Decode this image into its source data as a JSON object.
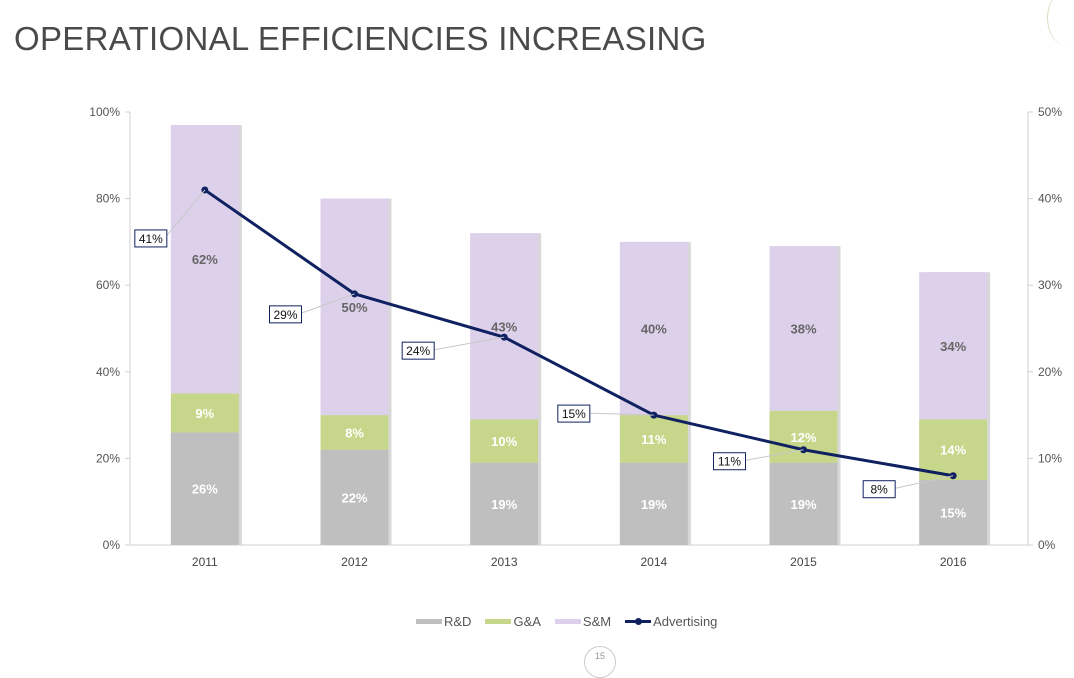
{
  "title": "OPERATIONAL EFFICIENCIES INCREASING",
  "page_number": "15",
  "chart_data": {
    "type": "bar",
    "stacked": true,
    "categories": [
      "2011",
      "2012",
      "2013",
      "2014",
      "2015",
      "2016"
    ],
    "series": [
      {
        "name": "R&D",
        "values": [
          26,
          22,
          19,
          19,
          19,
          15
        ],
        "color": "#bfbfbf",
        "axis": "left"
      },
      {
        "name": "G&A",
        "values": [
          9,
          8,
          10,
          11,
          12,
          14
        ],
        "color": "#c6d68a",
        "axis": "left"
      },
      {
        "name": "S&M",
        "values": [
          62,
          50,
          43,
          40,
          38,
          34
        ],
        "color": "#ddd0eb",
        "axis": "left"
      },
      {
        "name": "Advertising",
        "type": "line",
        "values": [
          41,
          29,
          24,
          15,
          11,
          8
        ],
        "color": "#0f2160",
        "axis": "right"
      }
    ],
    "left_axis": {
      "range": [
        0,
        100
      ],
      "ticks": [
        "0%",
        "20%",
        "40%",
        "60%",
        "80%",
        "100%"
      ]
    },
    "right_axis": {
      "range": [
        0,
        50
      ],
      "ticks": [
        "0%",
        "10%",
        "20%",
        "30%",
        "40%",
        "50%"
      ]
    },
    "grid": false,
    "legend": "bottom"
  }
}
